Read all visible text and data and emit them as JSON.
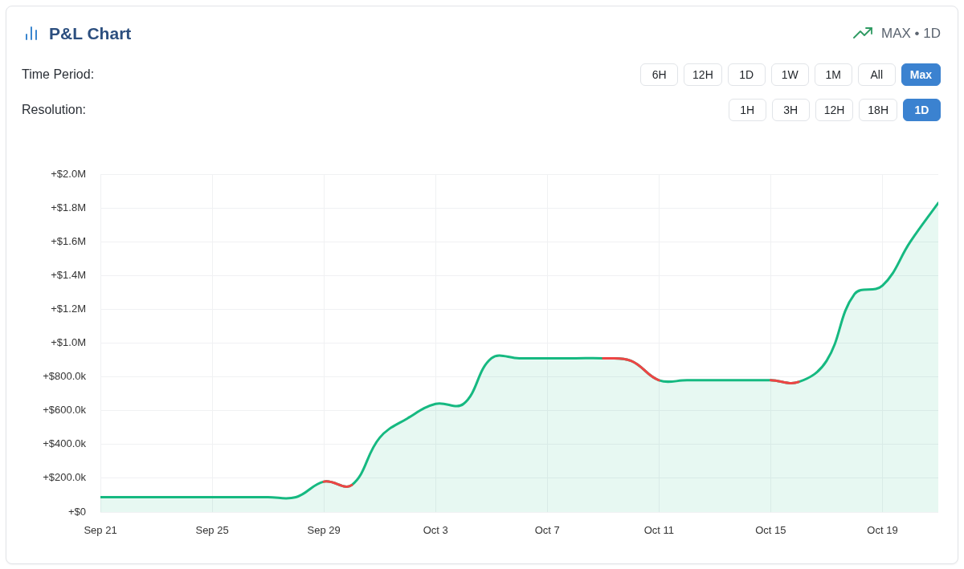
{
  "chart_data": {
    "type": "area",
    "title": "P&L Chart",
    "subtitle": "MAX • 1D",
    "annotations": [
      "Time Period:",
      "6H",
      "12H",
      "1D",
      "1W",
      "1M",
      "All",
      "Max",
      "Resolution:",
      "1H",
      "3H",
      "12H",
      "18H",
      "1D"
    ],
    "x": [
      "--09-21",
      "--09-22",
      "--09-23",
      "--09-24",
      "--09-25",
      "--09-26",
      "--09-27",
      "--09-28",
      "--09-29",
      "--09-30",
      "--10-01",
      "--10-02",
      "--10-03",
      "--10-04",
      "--10-05",
      "--10-06",
      "--10-07",
      "--10-08",
      "--10-09",
      "--10-10",
      "--10-11",
      "--10-12",
      "--10-13",
      "--10-14",
      "--10-15",
      "--10-16",
      "--10-17",
      "--10-18",
      "--10-19",
      "--10-20",
      "--10-21"
    ],
    "series": [
      {
        "color": "#16b981",
        "values": [
          88000,
          88000,
          88000,
          88000,
          88000,
          88000,
          88000,
          88000,
          180000,
          160000,
          440000,
          555000,
          640000,
          640000,
          910000,
          910000,
          910000,
          910000,
          910000,
          895000,
          780000,
          780000,
          780000,
          780000,
          780000,
          770000,
          895000,
          1290000,
          1340000,
          1600000,
          1830000
        ]
      },
      {
        "type": "line",
        "color": "#ef4444",
        "values": [
          null,
          null,
          null,
          null,
          null,
          null,
          null,
          null,
          180000,
          160000,
          null,
          null,
          null,
          null,
          null,
          null,
          null,
          null,
          910000,
          895000,
          780000,
          null,
          null,
          null,
          780000,
          770000,
          null,
          null,
          null,
          null,
          null
        ]
      }
    ],
    "xlim": [
      "--09-21",
      "--10-21"
    ],
    "xticks": [
      {
        "value": "--09-21",
        "label": "Sep 21"
      },
      {
        "value": "--09-25",
        "label": "Sep 25"
      },
      {
        "value": "--09-29",
        "label": "Sep 29"
      },
      {
        "value": "--10-03",
        "label": "Oct 3"
      },
      {
        "value": "--10-07",
        "label": "Oct 7"
      },
      {
        "value": "--10-11",
        "label": "Oct 11"
      },
      {
        "value": "--10-15",
        "label": "Oct 15"
      },
      {
        "value": "--10-19",
        "label": "Oct 19"
      }
    ],
    "ylim": [
      0,
      2000000
    ],
    "yticks": [
      {
        "value": 0,
        "label": "+$0"
      },
      {
        "value": 200000,
        "label": "+$200.0k"
      },
      {
        "value": 400000,
        "label": "+$400.0k"
      },
      {
        "value": 600000,
        "label": "+$600.0k"
      },
      {
        "value": 800000,
        "label": "+$800.0k"
      },
      {
        "value": 1000000,
        "label": "+$1.0M"
      },
      {
        "value": 1200000,
        "label": "+$1.2M"
      },
      {
        "value": 1400000,
        "label": "+$1.4M"
      },
      {
        "value": 1600000,
        "label": "+$1.6M"
      },
      {
        "value": 1800000,
        "label": "+$1.8M"
      },
      {
        "value": 2000000,
        "label": "+$2.0M"
      }
    ],
    "grid": true,
    "marker": "none",
    "line_style": "solid"
  }
}
